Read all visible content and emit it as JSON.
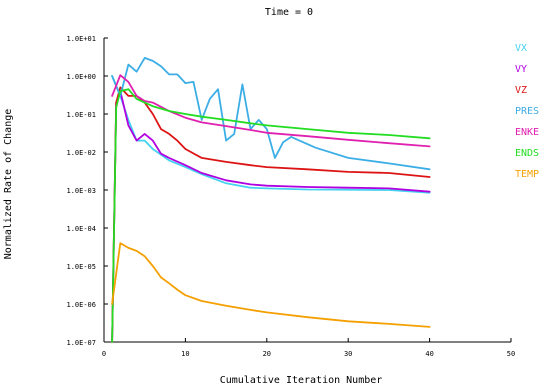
{
  "chart_data": {
    "type": "line",
    "title": "Time = 0",
    "xlabel": "Cumulative Iteration Number",
    "ylabel": "Normalized Rate of Change",
    "x_scale": "linear",
    "y_scale": "log",
    "xlim": [
      0,
      50
    ],
    "ylim": [
      1e-07,
      10
    ],
    "x_ticks": [
      0,
      10,
      20,
      30,
      40,
      50
    ],
    "x_tick_labels": [
      "0",
      "10",
      "20",
      "30",
      "40",
      "50"
    ],
    "y_ticks": [
      10,
      1,
      0.1,
      0.01,
      0.001,
      0.0001,
      1e-05,
      1e-06,
      1e-07
    ],
    "y_tick_labels": [
      "1.0E+01",
      "1.0E+00",
      "1.0E-01",
      "1.0E-02",
      "1.0E-03",
      "1.0E-04",
      "1.0E-05",
      "1.0E-06",
      "1.0E-07"
    ],
    "grid": false,
    "legend_position": "right",
    "series": [
      {
        "name": "VX",
        "color": "#44d2f0",
        "points": [
          [
            1,
            1
          ],
          [
            2,
            0.3
          ],
          [
            3,
            0.07
          ],
          [
            4,
            0.02
          ],
          [
            5,
            0.02
          ],
          [
            6,
            0.012
          ],
          [
            8,
            0.006
          ],
          [
            10,
            0.004
          ],
          [
            12,
            0.0026
          ],
          [
            15,
            0.0015
          ],
          [
            18,
            0.00115
          ],
          [
            20,
            0.0011
          ],
          [
            25,
            0.00103
          ],
          [
            30,
            0.00102
          ],
          [
            35,
            0.001
          ],
          [
            40,
            0.00085
          ]
        ]
      },
      {
        "name": "VY",
        "color": "#b000e0",
        "points": [
          [
            1,
            1e-07
          ],
          [
            1.5,
            0.2
          ],
          [
            2,
            0.4
          ],
          [
            3,
            0.05
          ],
          [
            4,
            0.02
          ],
          [
            5,
            0.03
          ],
          [
            6,
            0.02
          ],
          [
            7,
            0.009
          ],
          [
            8,
            0.007
          ],
          [
            10,
            0.0045
          ],
          [
            12,
            0.0028
          ],
          [
            15,
            0.0018
          ],
          [
            18,
            0.0014
          ],
          [
            20,
            0.0013
          ],
          [
            25,
            0.0012
          ],
          [
            30,
            0.00115
          ],
          [
            35,
            0.0011
          ],
          [
            40,
            0.0009
          ]
        ]
      },
      {
        "name": "VZ",
        "color": "#dd1414",
        "points": [
          [
            1,
            1e-07
          ],
          [
            1.5,
            0.2
          ],
          [
            2,
            0.5
          ],
          [
            3,
            0.3
          ],
          [
            4,
            0.3
          ],
          [
            5,
            0.2
          ],
          [
            6,
            0.1
          ],
          [
            7,
            0.04
          ],
          [
            8,
            0.03
          ],
          [
            9,
            0.02
          ],
          [
            10,
            0.012
          ],
          [
            12,
            0.007
          ],
          [
            15,
            0.0055
          ],
          [
            18,
            0.0045
          ],
          [
            20,
            0.004
          ],
          [
            25,
            0.0035
          ],
          [
            30,
            0.003
          ],
          [
            35,
            0.0028
          ],
          [
            40,
            0.0022
          ]
        ]
      },
      {
        "name": "PRES",
        "color": "#3caee6",
        "points": [
          [
            1,
            1
          ],
          [
            2,
            0.3
          ],
          [
            3,
            2
          ],
          [
            4,
            1.3
          ],
          [
            5,
            3
          ],
          [
            6,
            2.5
          ],
          [
            7,
            1.8
          ],
          [
            8,
            1.1
          ],
          [
            9,
            1.1
          ],
          [
            10,
            0.65
          ],
          [
            11,
            0.7
          ],
          [
            12,
            0.07
          ],
          [
            13,
            0.25
          ],
          [
            14,
            0.45
          ],
          [
            15,
            0.02
          ],
          [
            16,
            0.03
          ],
          [
            17,
            0.6
          ],
          [
            18,
            0.04
          ],
          [
            19,
            0.07
          ],
          [
            20,
            0.04
          ],
          [
            21,
            0.007
          ],
          [
            22,
            0.018
          ],
          [
            23,
            0.025
          ],
          [
            24,
            0.02
          ],
          [
            26,
            0.013
          ],
          [
            30,
            0.007
          ],
          [
            35,
            0.005
          ],
          [
            40,
            0.0035
          ]
        ]
      },
      {
        "name": "ENKE",
        "color": "#e020b0",
        "points": [
          [
            1,
            0.3
          ],
          [
            2,
            1.05
          ],
          [
            3,
            0.7
          ],
          [
            4,
            0.3
          ],
          [
            5,
            0.22
          ],
          [
            6,
            0.2
          ],
          [
            8,
            0.12
          ],
          [
            10,
            0.08
          ],
          [
            12,
            0.06
          ],
          [
            15,
            0.048
          ],
          [
            18,
            0.038
          ],
          [
            20,
            0.032
          ],
          [
            25,
            0.026
          ],
          [
            30,
            0.021
          ],
          [
            35,
            0.017
          ],
          [
            40,
            0.014
          ]
        ]
      },
      {
        "name": "ENDS",
        "color": "#22dd22",
        "points": [
          [
            1,
            1e-07
          ],
          [
            1.5,
            0.15
          ],
          [
            2,
            0.4
          ],
          [
            3,
            0.45
          ],
          [
            4,
            0.25
          ],
          [
            5,
            0.2
          ],
          [
            6,
            0.16
          ],
          [
            8,
            0.12
          ],
          [
            10,
            0.1
          ],
          [
            12,
            0.085
          ],
          [
            15,
            0.07
          ],
          [
            18,
            0.057
          ],
          [
            20,
            0.05
          ],
          [
            25,
            0.04
          ],
          [
            30,
            0.032
          ],
          [
            35,
            0.028
          ],
          [
            40,
            0.023
          ]
        ]
      },
      {
        "name": "TEMP",
        "color": "#f4a000",
        "points": [
          [
            1,
            1e-06
          ],
          [
            2,
            4e-05
          ],
          [
            3,
            3e-05
          ],
          [
            4,
            2.5e-05
          ],
          [
            5,
            1.8e-05
          ],
          [
            6,
            1e-05
          ],
          [
            7,
            5e-06
          ],
          [
            8,
            3.5e-06
          ],
          [
            9,
            2.4e-06
          ],
          [
            10,
            1.7e-06
          ],
          [
            12,
            1.2e-06
          ],
          [
            15,
            9e-07
          ],
          [
            18,
            7e-07
          ],
          [
            20,
            6e-07
          ],
          [
            25,
            4.5e-07
          ],
          [
            30,
            3.5e-07
          ],
          [
            35,
            3e-07
          ],
          [
            40,
            2.5e-07
          ]
        ]
      }
    ]
  }
}
